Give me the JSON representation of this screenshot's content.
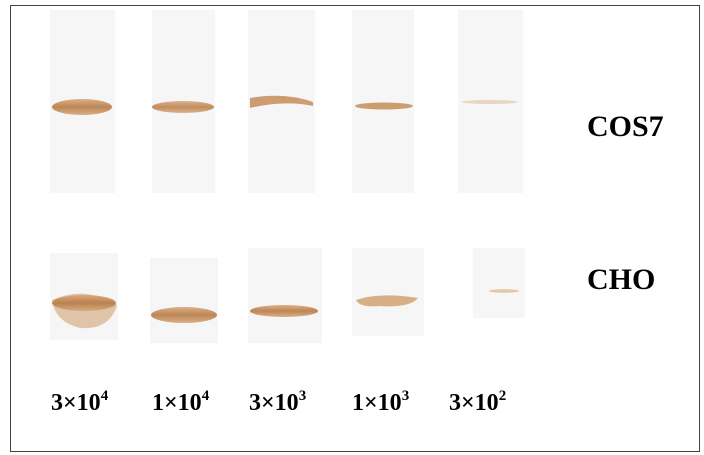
{
  "rows": [
    {
      "label": "COS7"
    },
    {
      "label": "CHO"
    }
  ],
  "columns": [
    {
      "base": "3×10",
      "exp": "4"
    },
    {
      "base": "1×10",
      "exp": "4"
    },
    {
      "base": "3×10",
      "exp": "3"
    },
    {
      "base": "1×10",
      "exp": "3"
    },
    {
      "base": "3×10",
      "exp": "2"
    }
  ]
}
